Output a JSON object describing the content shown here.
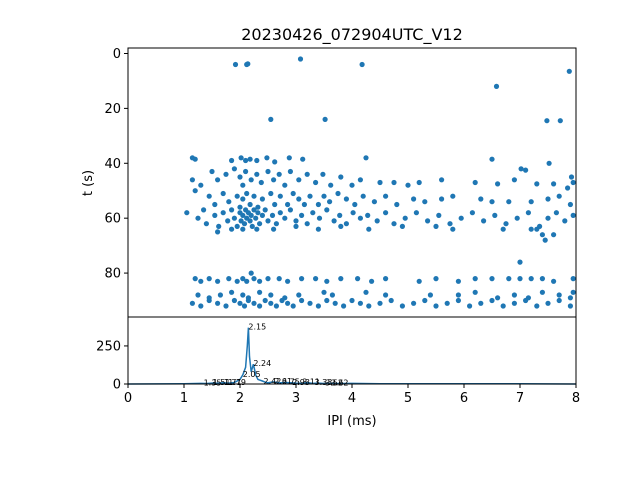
{
  "chart_data": [
    {
      "type": "scatter",
      "title": "20230426_072904UTC_V12",
      "xlabel": "",
      "ylabel": "t (s)",
      "xlim": [
        0,
        8
      ],
      "ylim": [
        96,
        -2
      ],
      "y_inverted": true,
      "yticks": [
        0,
        20,
        40,
        60,
        80
      ],
      "color": "#1f77b4",
      "points": [
        [
          1.92,
          4
        ],
        [
          2.12,
          4
        ],
        [
          2.14,
          3.8
        ],
        [
          4.18,
          4
        ],
        [
          3.08,
          2
        ],
        [
          6.58,
          12
        ],
        [
          7.88,
          6.5
        ],
        [
          2.55,
          24
        ],
        [
          3.52,
          24
        ],
        [
          7.48,
          24.5
        ],
        [
          7.72,
          24.5
        ],
        [
          1.15,
          38
        ],
        [
          1.2,
          38.5
        ],
        [
          1.85,
          39
        ],
        [
          2.02,
          38
        ],
        [
          2.1,
          39
        ],
        [
          2.18,
          38.5
        ],
        [
          2.3,
          39
        ],
        [
          2.48,
          38
        ],
        [
          2.62,
          39.5
        ],
        [
          2.88,
          38
        ],
        [
          3.12,
          38.5
        ],
        [
          4.25,
          38
        ],
        [
          6.5,
          38.5
        ],
        [
          7.02,
          42
        ],
        [
          7.1,
          42.5
        ],
        [
          7.52,
          40
        ],
        [
          7.92,
          45
        ],
        [
          1.15,
          46
        ],
        [
          1.3,
          48
        ],
        [
          1.2,
          50
        ],
        [
          1.5,
          43
        ],
        [
          1.6,
          46
        ],
        [
          1.75,
          44
        ],
        [
          1.9,
          42
        ],
        [
          2.0,
          45
        ],
        [
          2.05,
          48
        ],
        [
          2.1,
          43
        ],
        [
          2.2,
          46
        ],
        [
          2.3,
          44
        ],
        [
          2.38,
          47
        ],
        [
          2.5,
          43
        ],
        [
          2.6,
          46
        ],
        [
          2.7,
          44
        ],
        [
          2.8,
          48
        ],
        [
          2.9,
          43
        ],
        [
          3.05,
          46
        ],
        [
          3.2,
          44
        ],
        [
          3.35,
          47
        ],
        [
          3.48,
          44
        ],
        [
          3.62,
          48
        ],
        [
          3.8,
          45
        ],
        [
          4.0,
          48
        ],
        [
          4.15,
          46
        ],
        [
          4.5,
          47
        ],
        [
          4.75,
          47
        ],
        [
          5.0,
          48
        ],
        [
          5.2,
          47
        ],
        [
          5.6,
          46
        ],
        [
          6.2,
          47
        ],
        [
          6.6,
          47.5
        ],
        [
          6.9,
          46
        ],
        [
          7.3,
          47.5
        ],
        [
          7.6,
          47.5
        ],
        [
          7.85,
          49
        ],
        [
          7.95,
          47
        ],
        [
          1.45,
          52
        ],
        [
          1.55,
          55
        ],
        [
          1.7,
          51
        ],
        [
          1.8,
          54
        ],
        [
          1.95,
          52
        ],
        [
          2.0,
          56
        ],
        [
          2.05,
          53
        ],
        [
          2.12,
          51
        ],
        [
          2.18,
          55
        ],
        [
          2.25,
          52
        ],
        [
          2.32,
          56
        ],
        [
          2.4,
          53
        ],
        [
          2.55,
          51
        ],
        [
          2.62,
          55
        ],
        [
          2.72,
          52
        ],
        [
          2.85,
          55
        ],
        [
          2.95,
          51
        ],
        [
          3.05,
          53
        ],
        [
          3.15,
          55
        ],
        [
          3.25,
          52
        ],
        [
          3.4,
          55
        ],
        [
          3.5,
          52
        ],
        [
          3.6,
          54
        ],
        [
          3.75,
          51
        ],
        [
          3.9,
          53
        ],
        [
          4.05,
          55
        ],
        [
          4.2,
          52
        ],
        [
          4.4,
          54
        ],
        [
          4.6,
          52
        ],
        [
          4.8,
          55
        ],
        [
          5.1,
          53
        ],
        [
          5.3,
          54
        ],
        [
          5.6,
          53
        ],
        [
          5.8,
          52
        ],
        [
          6.3,
          53
        ],
        [
          6.5,
          54
        ],
        [
          6.8,
          54
        ],
        [
          7.2,
          54
        ],
        [
          7.5,
          53
        ],
        [
          7.7,
          52
        ],
        [
          7.9,
          55
        ],
        [
          1.05,
          58
        ],
        [
          1.25,
          60
        ],
        [
          1.35,
          57
        ],
        [
          1.4,
          62
        ],
        [
          1.55,
          59
        ],
        [
          1.62,
          63
        ],
        [
          1.7,
          58
        ],
        [
          1.78,
          61
        ],
        [
          1.85,
          57
        ],
        [
          1.9,
          60
        ],
        [
          1.95,
          63
        ],
        [
          2.0,
          58
        ],
        [
          2.02,
          61
        ],
        [
          2.05,
          59
        ],
        [
          2.08,
          62
        ],
        [
          2.1,
          57
        ],
        [
          2.12,
          60
        ],
        [
          2.15,
          58
        ],
        [
          2.18,
          61
        ],
        [
          2.2,
          59
        ],
        [
          2.22,
          63
        ],
        [
          2.25,
          57
        ],
        [
          2.28,
          60
        ],
        [
          2.32,
          58
        ],
        [
          2.35,
          62
        ],
        [
          2.4,
          59
        ],
        [
          2.45,
          57
        ],
        [
          2.5,
          61
        ],
        [
          2.58,
          59
        ],
        [
          2.65,
          62
        ],
        [
          2.72,
          58
        ],
        [
          2.8,
          60
        ],
        [
          2.9,
          57
        ],
        [
          3.0,
          61
        ],
        [
          3.1,
          59
        ],
        [
          3.2,
          62
        ],
        [
          3.3,
          58
        ],
        [
          3.42,
          60
        ],
        [
          3.55,
          57
        ],
        [
          3.68,
          61
        ],
        [
          3.78,
          59
        ],
        [
          3.9,
          62
        ],
        [
          4.02,
          58
        ],
        [
          4.15,
          60
        ],
        [
          4.28,
          59
        ],
        [
          4.45,
          61
        ],
        [
          4.6,
          58
        ],
        [
          4.75,
          62
        ],
        [
          4.95,
          60
        ],
        [
          5.15,
          58
        ],
        [
          5.35,
          61
        ],
        [
          5.55,
          59
        ],
        [
          5.75,
          62
        ],
        [
          5.95,
          60
        ],
        [
          6.15,
          58
        ],
        [
          6.35,
          61
        ],
        [
          6.55,
          59
        ],
        [
          6.75,
          62
        ],
        [
          6.95,
          60
        ],
        [
          7.15,
          58
        ],
        [
          7.35,
          63
        ],
        [
          7.5,
          60
        ],
        [
          7.65,
          58
        ],
        [
          7.8,
          61
        ],
        [
          7.95,
          59
        ],
        [
          1.6,
          65
        ],
        [
          1.85,
          64
        ],
        [
          2.05,
          64
        ],
        [
          2.3,
          64
        ],
        [
          2.6,
          64
        ],
        [
          3.0,
          63
        ],
        [
          3.4,
          64
        ],
        [
          3.8,
          63
        ],
        [
          4.3,
          64
        ],
        [
          4.9,
          63
        ],
        [
          5.5,
          63
        ],
        [
          5.8,
          64
        ],
        [
          6.7,
          64
        ],
        [
          7.3,
          64
        ],
        [
          7.45,
          68
        ],
        [
          7.4,
          66
        ],
        [
          7.6,
          66
        ],
        [
          7.2,
          64
        ],
        [
          7.0,
          76
        ],
        [
          1.2,
          82
        ],
        [
          1.3,
          83
        ],
        [
          1.45,
          82
        ],
        [
          1.6,
          83
        ],
        [
          1.8,
          82
        ],
        [
          1.95,
          83
        ],
        [
          2.05,
          82
        ],
        [
          2.12,
          83
        ],
        [
          2.2,
          80
        ],
        [
          2.25,
          82
        ],
        [
          2.35,
          83
        ],
        [
          2.5,
          82
        ],
        [
          2.7,
          82
        ],
        [
          2.85,
          83
        ],
        [
          3.1,
          82
        ],
        [
          3.35,
          82
        ],
        [
          3.55,
          83
        ],
        [
          3.8,
          82
        ],
        [
          4.1,
          82
        ],
        [
          4.35,
          83
        ],
        [
          4.6,
          82
        ],
        [
          5.2,
          83
        ],
        [
          5.5,
          82
        ],
        [
          5.9,
          83
        ],
        [
          6.2,
          82
        ],
        [
          6.5,
          82
        ],
        [
          6.8,
          82
        ],
        [
          7.0,
          82
        ],
        [
          7.2,
          82
        ],
        [
          7.4,
          82
        ],
        [
          7.6,
          83
        ],
        [
          7.95,
          82
        ],
        [
          1.25,
          88
        ],
        [
          1.45,
          89
        ],
        [
          1.65,
          88
        ],
        [
          1.85,
          87
        ],
        [
          2.05,
          88
        ],
        [
          2.15,
          89
        ],
        [
          2.35,
          87
        ],
        [
          2.55,
          88
        ],
        [
          2.8,
          89
        ],
        [
          3.05,
          88
        ],
        [
          3.5,
          87
        ],
        [
          3.65,
          88
        ],
        [
          4.25,
          87
        ],
        [
          4.6,
          88
        ],
        [
          5.4,
          88
        ],
        [
          5.9,
          88
        ],
        [
          6.2,
          87
        ],
        [
          6.6,
          89
        ],
        [
          6.9,
          88
        ],
        [
          7.15,
          89
        ],
        [
          7.4,
          87
        ],
        [
          7.7,
          88
        ],
        [
          7.9,
          89
        ],
        [
          7.95,
          87
        ],
        [
          1.15,
          91
        ],
        [
          1.3,
          92
        ],
        [
          1.45,
          90
        ],
        [
          1.6,
          91
        ],
        [
          1.75,
          92
        ],
        [
          1.9,
          90
        ],
        [
          2.0,
          91
        ],
        [
          2.08,
          92
        ],
        [
          2.15,
          90
        ],
        [
          2.25,
          91
        ],
        [
          2.35,
          92
        ],
        [
          2.45,
          90
        ],
        [
          2.55,
          91
        ],
        [
          2.65,
          92
        ],
        [
          2.75,
          90
        ],
        [
          2.85,
          91
        ],
        [
          2.95,
          92
        ],
        [
          3.1,
          90
        ],
        [
          3.25,
          91
        ],
        [
          3.4,
          92
        ],
        [
          3.55,
          90
        ],
        [
          3.7,
          91
        ],
        [
          3.85,
          92
        ],
        [
          4.0,
          90
        ],
        [
          4.15,
          91
        ],
        [
          4.3,
          92
        ],
        [
          4.5,
          91
        ],
        [
          4.7,
          90
        ],
        [
          4.9,
          92
        ],
        [
          5.1,
          91
        ],
        [
          5.3,
          90
        ],
        [
          5.5,
          92
        ],
        [
          5.7,
          91
        ],
        [
          5.9,
          90
        ],
        [
          6.1,
          92
        ],
        [
          6.3,
          91
        ],
        [
          6.5,
          90
        ],
        [
          6.7,
          92
        ],
        [
          6.9,
          91
        ],
        [
          7.1,
          90
        ],
        [
          7.3,
          92
        ],
        [
          7.5,
          91
        ],
        [
          7.7,
          90
        ],
        [
          7.9,
          92
        ]
      ]
    },
    {
      "type": "line",
      "xlabel": "IPI (ms)",
      "ylabel": "",
      "xlim": [
        0,
        8
      ],
      "ylim": [
        0,
        440
      ],
      "xticks": [
        0,
        1,
        2,
        3,
        4,
        5,
        6,
        7,
        8
      ],
      "yticks": [
        0,
        250
      ],
      "color": "#1f77b4",
      "x": [
        0,
        1.0,
        1.3,
        1.4,
        1.5,
        1.6,
        1.7,
        1.8,
        1.9,
        2.0,
        2.05,
        2.1,
        2.13,
        2.15,
        2.17,
        2.2,
        2.24,
        2.28,
        2.32,
        2.4,
        2.45,
        2.5,
        2.6,
        2.7,
        2.8,
        2.9,
        3.0,
        3.1,
        3.2,
        3.3,
        3.4,
        3.5,
        3.6,
        3.8,
        4.0,
        4.5,
        5.0,
        6.0,
        7.0,
        8.0
      ],
      "y": [
        0,
        2,
        4,
        3,
        6,
        5,
        8,
        6,
        10,
        30,
        60,
        110,
        250,
        370,
        180,
        80,
        130,
        60,
        30,
        20,
        12,
        8,
        14,
        7,
        10,
        8,
        6,
        5,
        9,
        4,
        6,
        3,
        4,
        3,
        4,
        2,
        2,
        1,
        1,
        0
      ],
      "peak_labels": [
        {
          "x": 2.15,
          "y": 370,
          "text": "2.15"
        },
        {
          "x": 2.24,
          "y": 130,
          "text": "2.24"
        },
        {
          "x": 2.05,
          "y": 60,
          "text": "2.05"
        },
        {
          "x": 1.35,
          "y": 4,
          "text": "1.35"
        },
        {
          "x": 1.51,
          "y": 6,
          "text": "1.51"
        },
        {
          "x": 1.71,
          "y": 8,
          "text": "1.71"
        },
        {
          "x": 1.79,
          "y": 6,
          "text": "1.79"
        },
        {
          "x": 2.42,
          "y": 12,
          "text": "2.42"
        },
        {
          "x": 2.61,
          "y": 14,
          "text": "2.61"
        },
        {
          "x": 2.75,
          "y": 10,
          "text": "2.75"
        },
        {
          "x": 2.93,
          "y": 8,
          "text": "2.93"
        },
        {
          "x": 3.11,
          "y": 9,
          "text": "3.11"
        },
        {
          "x": 3.33,
          "y": 6,
          "text": "3.33"
        },
        {
          "x": 3.52,
          "y": 4,
          "text": "3.52"
        },
        {
          "x": 3.62,
          "y": 4,
          "text": "3.62"
        }
      ]
    }
  ]
}
